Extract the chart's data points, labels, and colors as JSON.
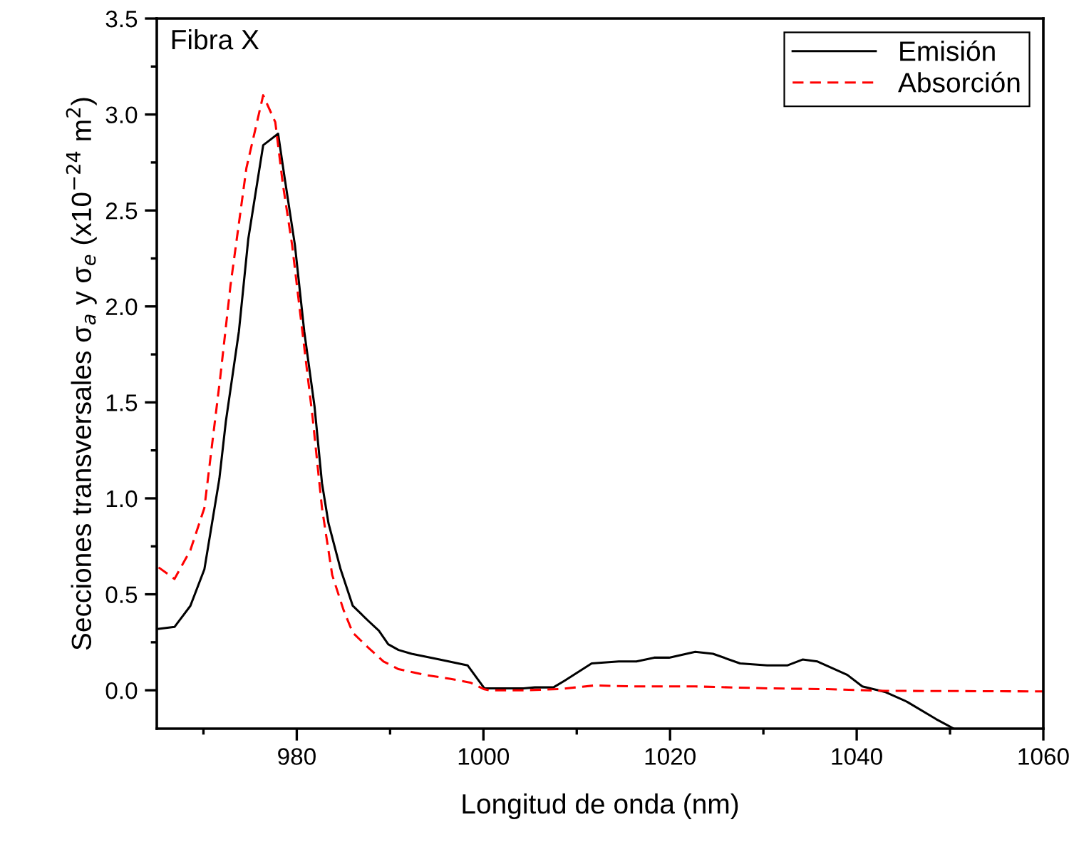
{
  "chart_data": {
    "type": "line",
    "xlabel": "Longitud de onda (nm)",
    "ylabel": "Secciones transversales σ$_{a}$ y σ$_{e}$ (x10$^{−24}$ m$^{2}$)",
    "annotations": [
      "Fibra X"
    ],
    "xlim": [
      965,
      1060
    ],
    "xticks": [
      980,
      1000,
      1020,
      1040,
      1060
    ],
    "ylim": [
      -0.2,
      3.5
    ],
    "yticks": [
      {
        "value": 0,
        "label": "0.0"
      },
      {
        "value": 0.5,
        "label": "0.5"
      },
      {
        "value": 1,
        "label": "1.0"
      },
      {
        "value": 1.5,
        "label": "1.5"
      },
      {
        "value": 2,
        "label": "2.0"
      },
      {
        "value": 2.5,
        "label": "2.5"
      },
      {
        "value": 3,
        "label": "3.0"
      },
      {
        "value": 3.5,
        "label": "3.5"
      }
    ],
    "legend": "top right",
    "grid": false,
    "series": [
      {
        "name": "Emisión",
        "color": "#000000",
        "line_style": "solid",
        "x": [
          965.2,
          966.9,
          968.6,
          970.1,
          971.7,
          972.4,
          973.8,
          974.8,
          976.4,
          977.2,
          978.0,
          978.7,
          979.8,
          980.8,
          981.9,
          982.7,
          983.4,
          984.7,
          986.0,
          987.7,
          988.8,
          989.8,
          990.9,
          992.3,
          995.3,
          998.3,
          1000.1,
          1000.4,
          1002.0,
          1004.3,
          1005.5,
          1007.5,
          1008.7,
          1011.6,
          1014.5,
          1016.4,
          1018.3,
          1019.9,
          1022.7,
          1024.6,
          1027.5,
          1030.4,
          1032.6,
          1034.2,
          1035.8,
          1039.0,
          1040.6,
          1043.1,
          1045.4,
          1048.5,
          1050.4
        ],
        "values": [
          0.32,
          0.33,
          0.44,
          0.63,
          1.1,
          1.4,
          1.87,
          2.35,
          2.84,
          2.87,
          2.9,
          2.67,
          2.32,
          1.87,
          1.48,
          1.08,
          0.87,
          0.63,
          0.44,
          0.36,
          0.31,
          0.24,
          0.21,
          0.19,
          0.16,
          0.13,
          0.01,
          0.01,
          0.01,
          0.01,
          0.015,
          0.015,
          0.05,
          0.14,
          0.15,
          0.15,
          0.17,
          0.17,
          0.2,
          0.19,
          0.14,
          0.13,
          0.13,
          0.16,
          0.15,
          0.08,
          0.02,
          -0.01,
          -0.06,
          -0.15,
          -0.2
        ]
      },
      {
        "name": "Absorción",
        "color": "#ff0000",
        "line_style": "dashed",
        "x": [
          965.2,
          966.9,
          968.6,
          970.1,
          971.8,
          972.9,
          974.6,
          976.4,
          977.7,
          978.5,
          979.5,
          980.6,
          981.7,
          982.7,
          983.8,
          985.0,
          986.0,
          987.7,
          989.3,
          990.9,
          993.7,
          996.4,
          998.6,
          1000.1,
          1000.6,
          1004.3,
          1008.1,
          1011.9,
          1016.4,
          1022.7,
          1030.4,
          1036.8,
          1043.1,
          1060
        ],
        "values": [
          0.64,
          0.58,
          0.73,
          0.95,
          1.63,
          2.11,
          2.72,
          3.1,
          2.96,
          2.64,
          2.32,
          1.87,
          1.42,
          0.95,
          0.6,
          0.42,
          0.3,
          0.22,
          0.15,
          0.11,
          0.08,
          0.06,
          0.04,
          0.005,
          0.0,
          0.0,
          0.006,
          0.025,
          0.02,
          0.02,
          0.01,
          0.006,
          -0.003,
          -0.006
        ]
      }
    ]
  }
}
